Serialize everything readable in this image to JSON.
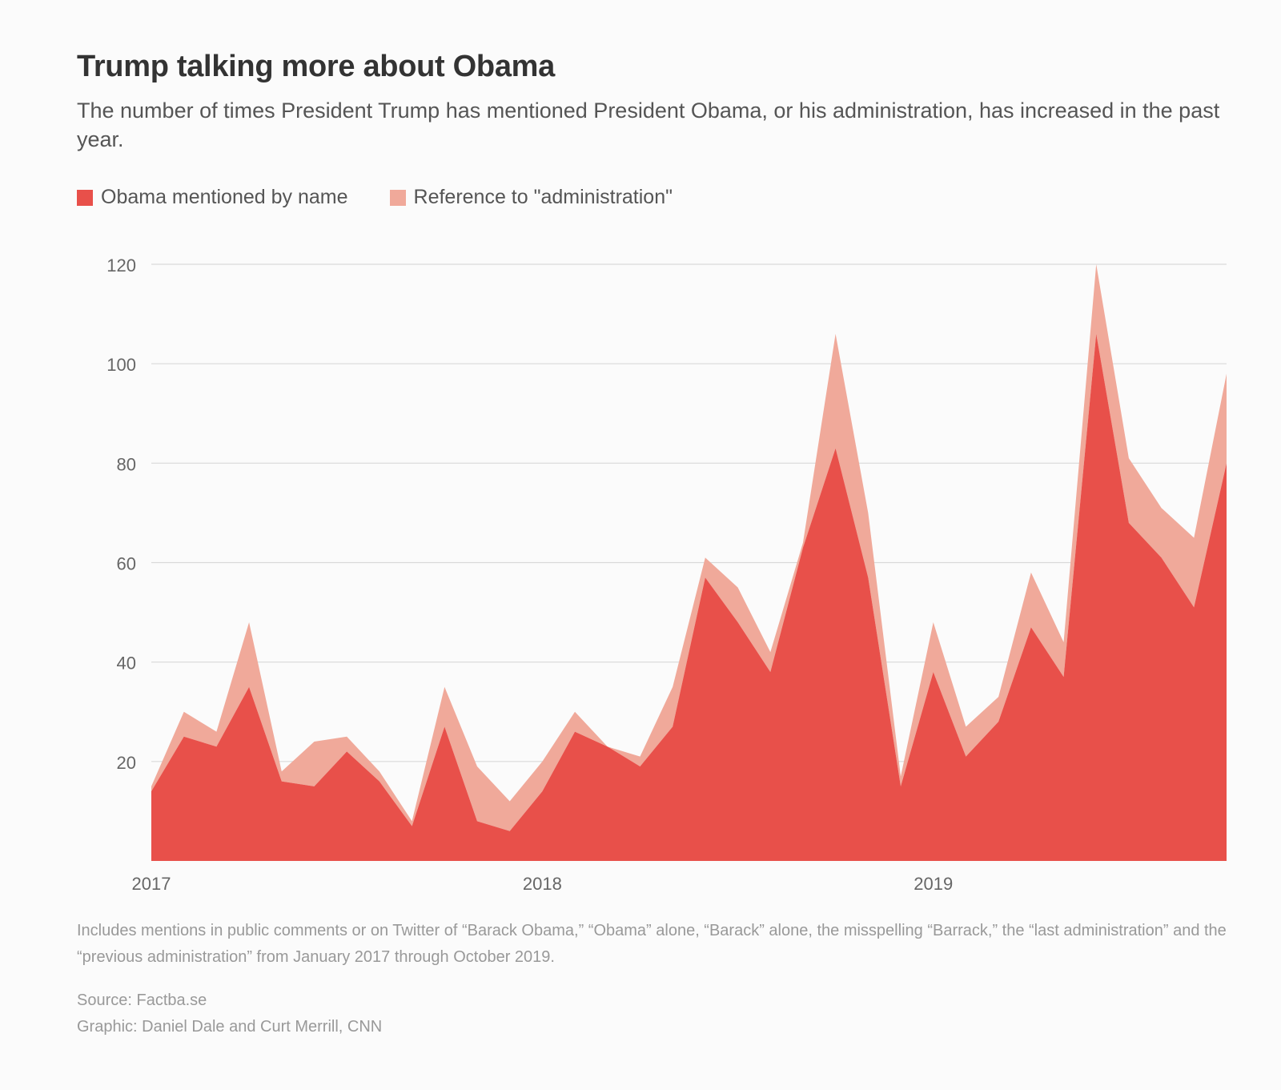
{
  "header": {
    "title": "Trump talking more about Obama",
    "subtitle": "The number of times President Trump has mentioned President Obama, or his administration, has increased in the past year."
  },
  "legend": [
    {
      "label": "Obama mentioned by name",
      "color": "#e8504a"
    },
    {
      "label": "Reference to \"administration\"",
      "color": "#f0a99a"
    }
  ],
  "chart_data": {
    "type": "area",
    "stacked": true,
    "x_ticks": [
      "2017",
      "2018",
      "2019"
    ],
    "x_tick_index": [
      0,
      12,
      24
    ],
    "y_ticks": [
      20,
      40,
      60,
      80,
      100,
      120
    ],
    "ylim": [
      0,
      120
    ],
    "grid": true,
    "legend_position": "top-left",
    "x": [
      "2017-01",
      "2017-02",
      "2017-03",
      "2017-04",
      "2017-05",
      "2017-06",
      "2017-07",
      "2017-08",
      "2017-09",
      "2017-10",
      "2017-11",
      "2017-12",
      "2018-01",
      "2018-02",
      "2018-03",
      "2018-04",
      "2018-05",
      "2018-06",
      "2018-07",
      "2018-08",
      "2018-09",
      "2018-10",
      "2018-11",
      "2018-12",
      "2019-01",
      "2019-02",
      "2019-03",
      "2019-04",
      "2019-05",
      "2019-06",
      "2019-07",
      "2019-08",
      "2019-09",
      "2019-10"
    ],
    "series": [
      {
        "name": "Obama mentioned by name",
        "color": "#e8504a",
        "values": [
          14,
          25,
          23,
          35,
          16,
          15,
          22,
          16,
          7,
          27,
          8,
          6,
          14,
          26,
          23,
          19,
          27,
          57,
          48,
          38,
          63,
          83,
          57,
          15,
          38,
          21,
          28,
          47,
          37,
          106,
          68,
          61,
          51,
          80
        ]
      },
      {
        "name": "Reference to \"administration\"",
        "color": "#f0a99a",
        "values": [
          1,
          5,
          3,
          13,
          2,
          9,
          3,
          2,
          1,
          8,
          11,
          6,
          6,
          4,
          0,
          2,
          8,
          4,
          7,
          4,
          1,
          23,
          13,
          2,
          10,
          6,
          5,
          11,
          7,
          14,
          13,
          10,
          14,
          18
        ]
      }
    ]
  },
  "footer": {
    "note": "Includes mentions in public comments or on Twitter of “Barack Obama,” “Obama” alone, “Barack” alone, the misspelling “Barrack,” the “last administration” and the “previous administration” from January 2017 through October 2019.",
    "source": "Source: Factba.se",
    "credit": "Graphic: Daniel Dale and Curt Merrill, CNN"
  }
}
